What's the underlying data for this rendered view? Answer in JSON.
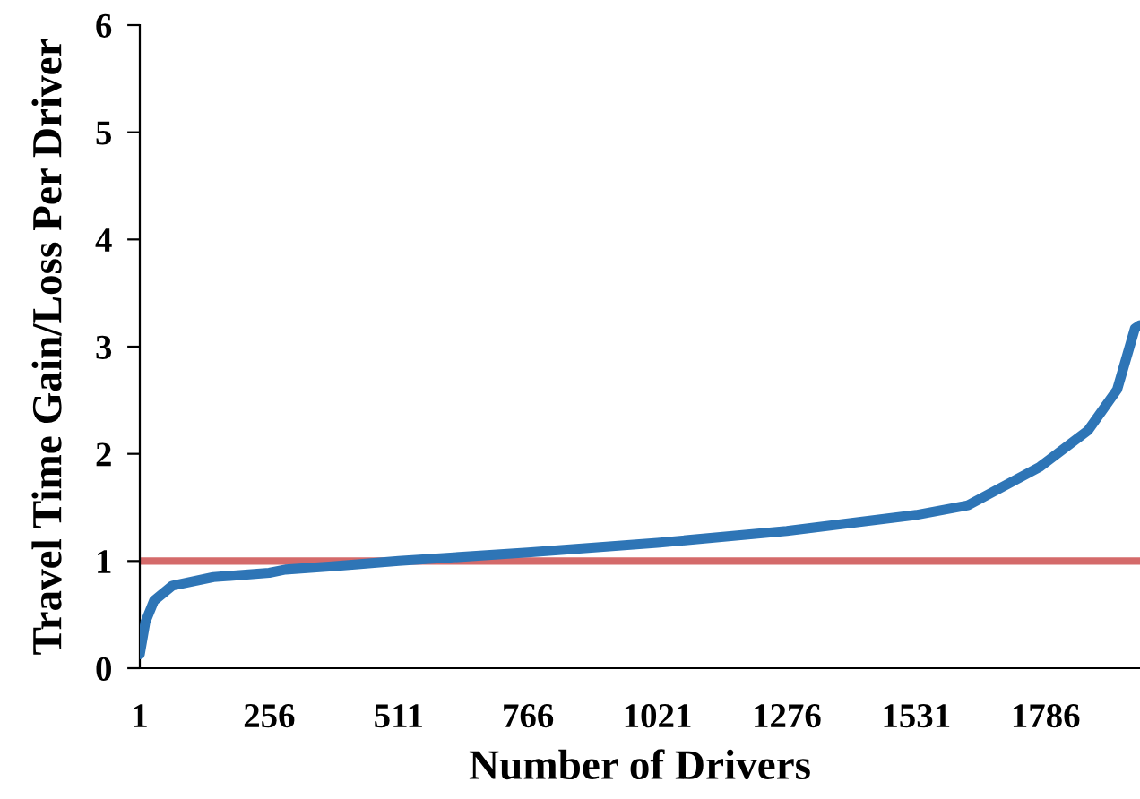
{
  "chart_data": {
    "type": "line",
    "xlabel": "Number of Drivers",
    "ylabel": "Travel Time Gain/Loss Per Driver",
    "xlim": [
      1,
      1972
    ],
    "xticks": [
      1,
      256,
      511,
      766,
      1021,
      1276,
      1531,
      1786
    ],
    "ylim": [
      0,
      6
    ],
    "yticks": [
      0,
      1,
      2,
      3,
      4,
      5,
      6
    ],
    "grid": false,
    "marker": "none",
    "line_style": "solid",
    "series": [
      {
        "color": "#2e75b6",
        "x": [
          1,
          12,
          29,
          65,
          146,
          256,
          288,
          380,
          430,
          511,
          766,
          1021,
          1276,
          1531,
          1633,
          1775,
          1870,
          1927,
          1962,
          1972
        ],
        "values": [
          0.13,
          0.43,
          0.63,
          0.77,
          0.85,
          0.89,
          0.92,
          0.95,
          0.97,
          1.0,
          1.08,
          1.17,
          1.28,
          1.43,
          1.52,
          1.88,
          2.22,
          2.6,
          3.17,
          3.2
        ]
      }
    ],
    "ref_lines": [
      {
        "axis": "y",
        "value": 1,
        "color": "#d46a6a",
        "line_style": "solid"
      }
    ]
  }
}
